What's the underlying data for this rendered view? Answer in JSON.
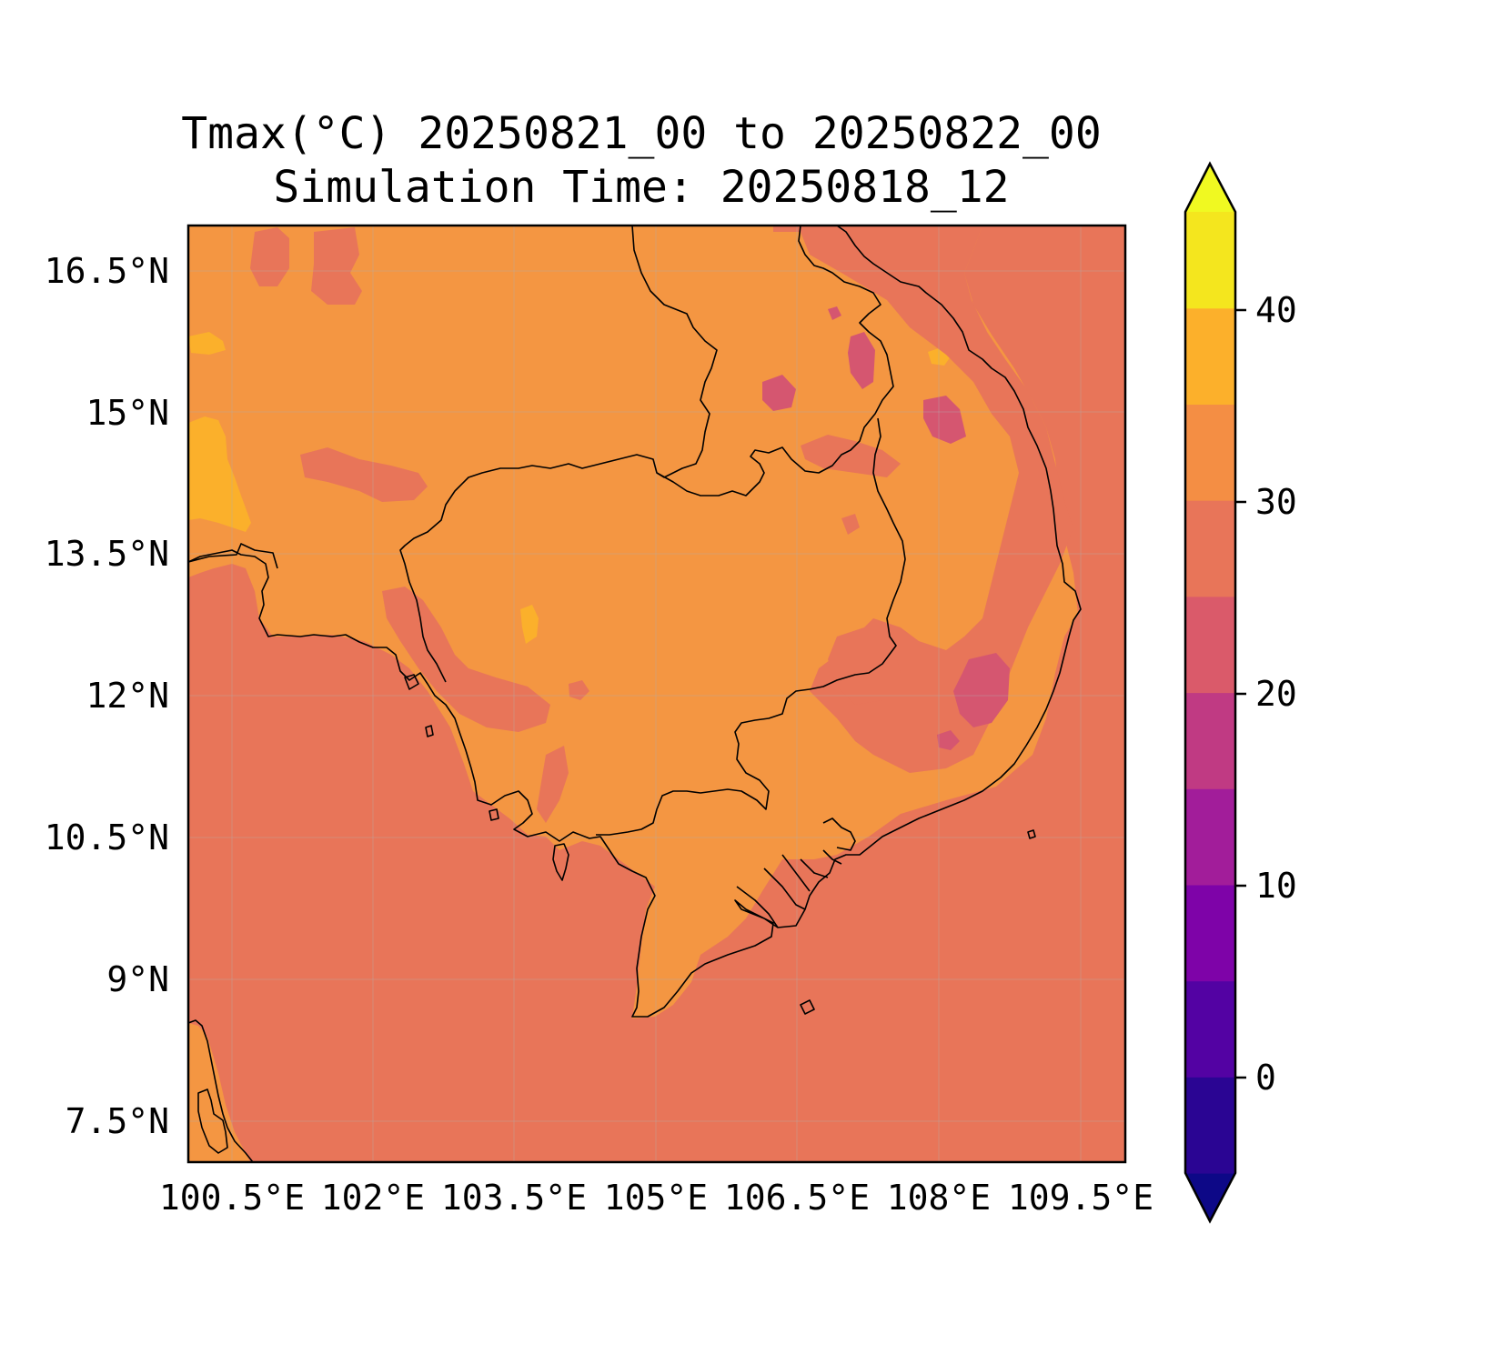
{
  "title": {
    "line1": "Tmax(°C) 20250821_00 to 20250822_00",
    "line2": "Simulation Time: 20250818_12"
  },
  "map": {
    "lon_ticks": [
      "100.5°E",
      "102°E",
      "103.5°E",
      "105°E",
      "106.5°E",
      "108°E",
      "109.5°E"
    ],
    "lat_ticks": [
      "16.5°N",
      "15°N",
      "13.5°N",
      "12°N",
      "10.5°N",
      "9°N",
      "7.5°N"
    ],
    "background_fill_value": 28,
    "land_fill_value": 32
  },
  "colorbar": {
    "ticks": [
      "40",
      "30",
      "20",
      "10",
      "0"
    ],
    "levels": [
      -5,
      0,
      5,
      10,
      15,
      20,
      25,
      30,
      35,
      40,
      45
    ],
    "colors": [
      "#0d0887",
      "#2a0593",
      "#5302a3",
      "#7e03a8",
      "#a21d9a",
      "#c03a83",
      "#da5a6a",
      "#e87559",
      "#f48e44",
      "#fcb02b",
      "#f4e61e",
      "#f0f921"
    ],
    "extend": "both"
  }
}
